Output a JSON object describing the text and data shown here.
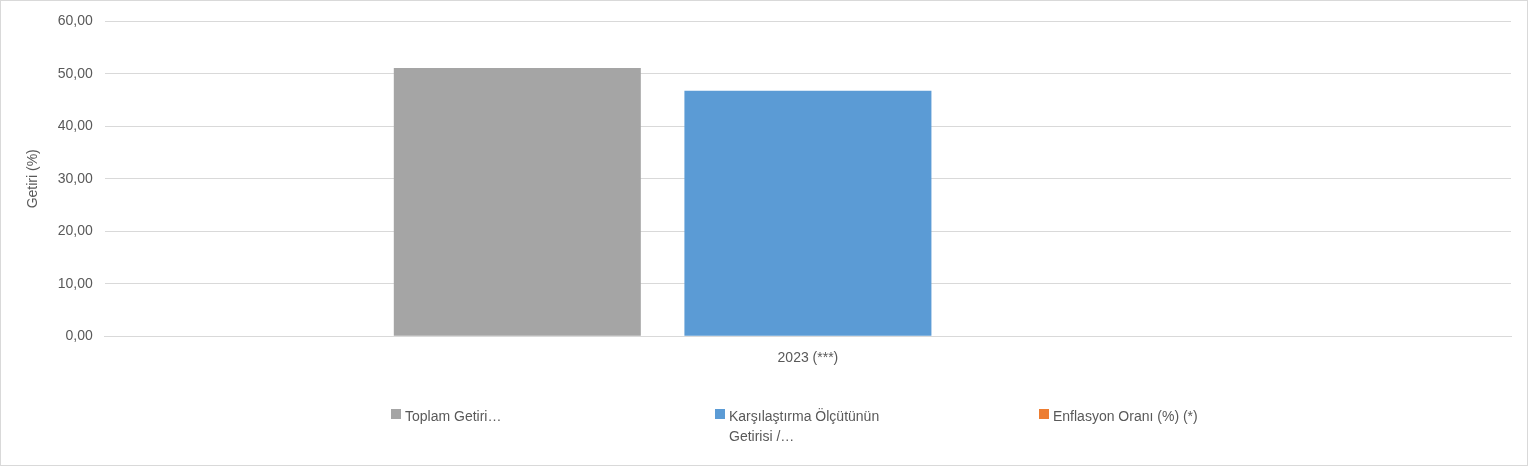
{
  "chart_data": {
    "type": "bar",
    "ylabel": "Getiri (%)",
    "categories": [
      "2023 (***)"
    ],
    "series": [
      {
        "name": "Toplam Getiri…",
        "color": "#a5a5a5",
        "values": [
          51.1
        ]
      },
      {
        "name": "Karşılaştırma Ölçütünün Getirisi /…",
        "color": "#5b9bd5",
        "values": [
          46.8
        ]
      },
      {
        "name": "Enflasyon Oranı (%) (*)",
        "color": "#ed7d31",
        "values": [
          null
        ]
      }
    ],
    "ylim": [
      0,
      60
    ],
    "yticks": [
      {
        "value": 0,
        "label": "0,00"
      },
      {
        "value": 10,
        "label": "10,00"
      },
      {
        "value": 20,
        "label": "20,00"
      },
      {
        "value": 30,
        "label": "30,00"
      },
      {
        "value": 40,
        "label": "40,00"
      },
      {
        "value": 50,
        "label": "50,00"
      },
      {
        "value": 60,
        "label": "60,00"
      }
    ],
    "grid": "y",
    "legend": "bottom"
  }
}
